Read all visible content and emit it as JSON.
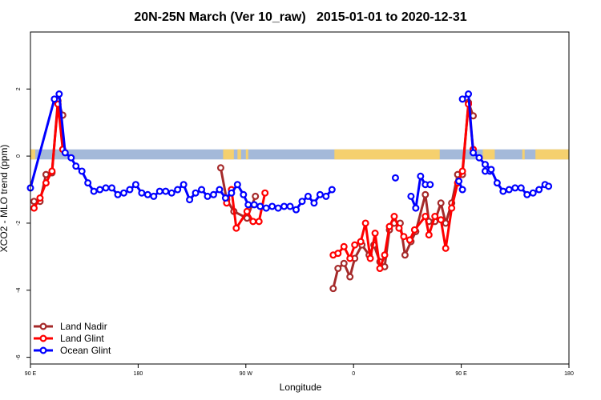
{
  "chart_data": {
    "type": "line",
    "title": "20N-25N March (Ver 10_raw)   2015-01-01 to 2020-12-31",
    "xlabel": "Longitude",
    "ylabel": "XCO2 - MLO trend (ppm)",
    "xlim": [
      0,
      450
    ],
    "ylim": [
      -6.2,
      3.7
    ],
    "x_ticks": [
      {
        "value": 0,
        "label": "90 E"
      },
      {
        "value": 90,
        "label": "180"
      },
      {
        "value": 180,
        "label": "90 W"
      },
      {
        "value": 270,
        "label": "0"
      },
      {
        "value": 360,
        "label": "90 E"
      },
      {
        "value": 450,
        "label": "180"
      }
    ],
    "y_ticks": [
      {
        "value": 2,
        "label": "2"
      },
      {
        "value": 0,
        "label": "0"
      },
      {
        "value": -2,
        "label": "-2"
      },
      {
        "value": -4,
        "label": "-4"
      },
      {
        "value": -6,
        "label": "-6"
      }
    ],
    "background_map": {
      "ocean_color": "#a4b9d9",
      "land_color": "#f5d06e",
      "y_range": [
        -0.1,
        0.2
      ],
      "land_segments": [
        [
          0,
          4
        ],
        [
          161,
          170
        ],
        [
          173,
          176
        ],
        [
          180,
          182
        ],
        [
          254,
          342
        ],
        [
          378,
          388
        ],
        [
          411,
          413
        ],
        [
          422,
          450
        ]
      ]
    },
    "legend": {
      "position": "bottom-left",
      "entries": [
        {
          "label": "Land Nadir",
          "color": "#a52a2a"
        },
        {
          "label": "Land Glint",
          "color": "#ff0000"
        },
        {
          "label": "Ocean Glint",
          "color": "#0000ff"
        }
      ]
    },
    "series": [
      {
        "name": "Land Nadir",
        "color": "#a52a2a",
        "segments": [
          [
            [
              3,
              -1.35
            ],
            [
              8,
              -1.35
            ],
            [
              13,
              -0.55
            ],
            [
              18,
              -0.5
            ],
            [
              23,
              1.65
            ],
            [
              27,
              1.22
            ]
          ],
          [
            [
              159,
              -0.35
            ],
            [
              164,
              -1.3
            ],
            [
              170,
              -1.65
            ],
            [
              181,
              -1.85
            ],
            [
              188,
              -1.2
            ]
          ],
          [
            [
              253,
              -3.95
            ],
            [
              257,
              -3.35
            ],
            [
              262,
              -3.2
            ],
            [
              267,
              -3.6
            ],
            [
              271,
              -3.05
            ],
            [
              277,
              -2.65
            ],
            [
              283,
              -2.95
            ],
            [
              287,
              -2.65
            ],
            [
              292,
              -3.15
            ],
            [
              296,
              -3.3
            ],
            [
              300,
              -2.2
            ],
            [
              304,
              -2.0
            ],
            [
              309,
              -2.0
            ],
            [
              313,
              -2.95
            ],
            [
              318,
              -2.55
            ],
            [
              322,
              -2.25
            ],
            [
              330,
              -1.15
            ],
            [
              333,
              -1.95
            ],
            [
              338,
              -1.95
            ],
            [
              343,
              -1.4
            ],
            [
              347,
              -2.0
            ],
            [
              352,
              -1.4
            ],
            [
              357,
              -0.55
            ],
            [
              361,
              -0.55
            ],
            [
              366,
              1.6
            ],
            [
              370,
              1.2
            ]
          ]
        ]
      },
      {
        "name": "Land Glint",
        "color": "#ff0000",
        "segments": [
          [
            [
              3,
              -1.55
            ],
            [
              8,
              -1.25
            ],
            [
              13,
              -0.8
            ],
            [
              18,
              -0.45
            ],
            [
              23,
              1.55
            ],
            [
              27,
              0.2
            ]
          ],
          [
            [
              164,
              -1.4
            ],
            [
              168,
              -1.0
            ],
            [
              172,
              -2.15
            ],
            [
              181,
              -1.65
            ],
            [
              186,
              -1.95
            ],
            [
              191,
              -1.95
            ],
            [
              196,
              -1.1
            ]
          ],
          [
            [
              253,
              -2.95
            ],
            [
              257,
              -2.9
            ],
            [
              262,
              -2.7
            ],
            [
              267,
              -3.05
            ],
            [
              271,
              -2.65
            ],
            [
              276,
              -2.55
            ],
            [
              280,
              -2.0
            ],
            [
              284,
              -3.05
            ],
            [
              288,
              -2.3
            ],
            [
              292,
              -3.35
            ],
            [
              296,
              -2.95
            ],
            [
              300,
              -2.1
            ],
            [
              304,
              -1.8
            ],
            [
              308,
              -2.15
            ],
            [
              312,
              -2.4
            ],
            [
              317,
              -2.5
            ],
            [
              321,
              -2.2
            ],
            [
              330,
              -1.8
            ],
            [
              333,
              -2.35
            ],
            [
              338,
              -1.8
            ],
            [
              343,
              -1.9
            ],
            [
              347,
              -2.75
            ],
            [
              352,
              -1.55
            ],
            [
              357,
              -0.8
            ],
            [
              361,
              -0.45
            ],
            [
              366,
              1.55
            ],
            [
              370,
              0.2
            ]
          ]
        ]
      },
      {
        "name": "Ocean Glint",
        "color": "#0000ff",
        "segments": [
          [
            [
              0,
              -0.95
            ],
            [
              20,
              1.7
            ],
            [
              24,
              1.85
            ],
            [
              29,
              0.1
            ],
            [
              34,
              -0.05
            ],
            [
              38,
              -0.3
            ],
            [
              43,
              -0.45
            ],
            [
              48,
              -0.8
            ],
            [
              53,
              -1.05
            ],
            [
              58,
              -1.0
            ],
            [
              63,
              -0.95
            ],
            [
              68,
              -0.95
            ],
            [
              73,
              -1.15
            ],
            [
              78,
              -1.1
            ],
            [
              83,
              -1.0
            ],
            [
              88,
              -0.85
            ],
            [
              93,
              -1.1
            ],
            [
              98,
              -1.15
            ],
            [
              103,
              -1.2
            ],
            [
              108,
              -1.05
            ],
            [
              113,
              -1.05
            ],
            [
              118,
              -1.1
            ],
            [
              123,
              -1.0
            ],
            [
              128,
              -0.85
            ],
            [
              133,
              -1.3
            ],
            [
              138,
              -1.1
            ],
            [
              143,
              -1.0
            ],
            [
              148,
              -1.2
            ],
            [
              153,
              -1.15
            ],
            [
              158,
              -1.0
            ],
            [
              163,
              -1.25
            ],
            [
              168,
              -1.1
            ],
            [
              173,
              -0.85
            ],
            [
              178,
              -1.15
            ],
            [
              182,
              -1.45
            ],
            [
              187,
              -1.45
            ],
            [
              192,
              -1.5
            ],
            [
              197,
              -1.55
            ],
            [
              202,
              -1.5
            ],
            [
              207,
              -1.55
            ],
            [
              212,
              -1.5
            ],
            [
              217,
              -1.5
            ],
            [
              222,
              -1.6
            ],
            [
              227,
              -1.35
            ],
            [
              232,
              -1.2
            ],
            [
              237,
              -1.4
            ],
            [
              242,
              -1.15
            ],
            [
              247,
              -1.2
            ],
            [
              252,
              -1.0
            ]
          ],
          [
            [
              305,
              -0.65
            ]
          ],
          [
            [
              318,
              -1.2
            ],
            [
              322,
              -1.55
            ],
            [
              326,
              -0.6
            ],
            [
              330,
              -0.85
            ],
            [
              334,
              -0.85
            ]
          ],
          [
            [
              358,
              -0.75
            ],
            [
              361,
              -1.0
            ]
          ],
          [
            [
              380,
              -0.45
            ],
            [
              384,
              -0.45
            ]
          ],
          [
            [
              361,
              1.7
            ],
            [
              366,
              1.85
            ],
            [
              370,
              0.1
            ],
            [
              375,
              -0.05
            ],
            [
              380,
              -0.25
            ],
            [
              385,
              -0.4
            ],
            [
              390,
              -0.8
            ],
            [
              395,
              -1.05
            ],
            [
              400,
              -1.0
            ],
            [
              405,
              -0.95
            ],
            [
              410,
              -0.95
            ],
            [
              415,
              -1.15
            ],
            [
              420,
              -1.1
            ],
            [
              425,
              -1.0
            ],
            [
              430,
              -0.85
            ],
            [
              433,
              -0.9
            ]
          ]
        ]
      }
    ]
  }
}
